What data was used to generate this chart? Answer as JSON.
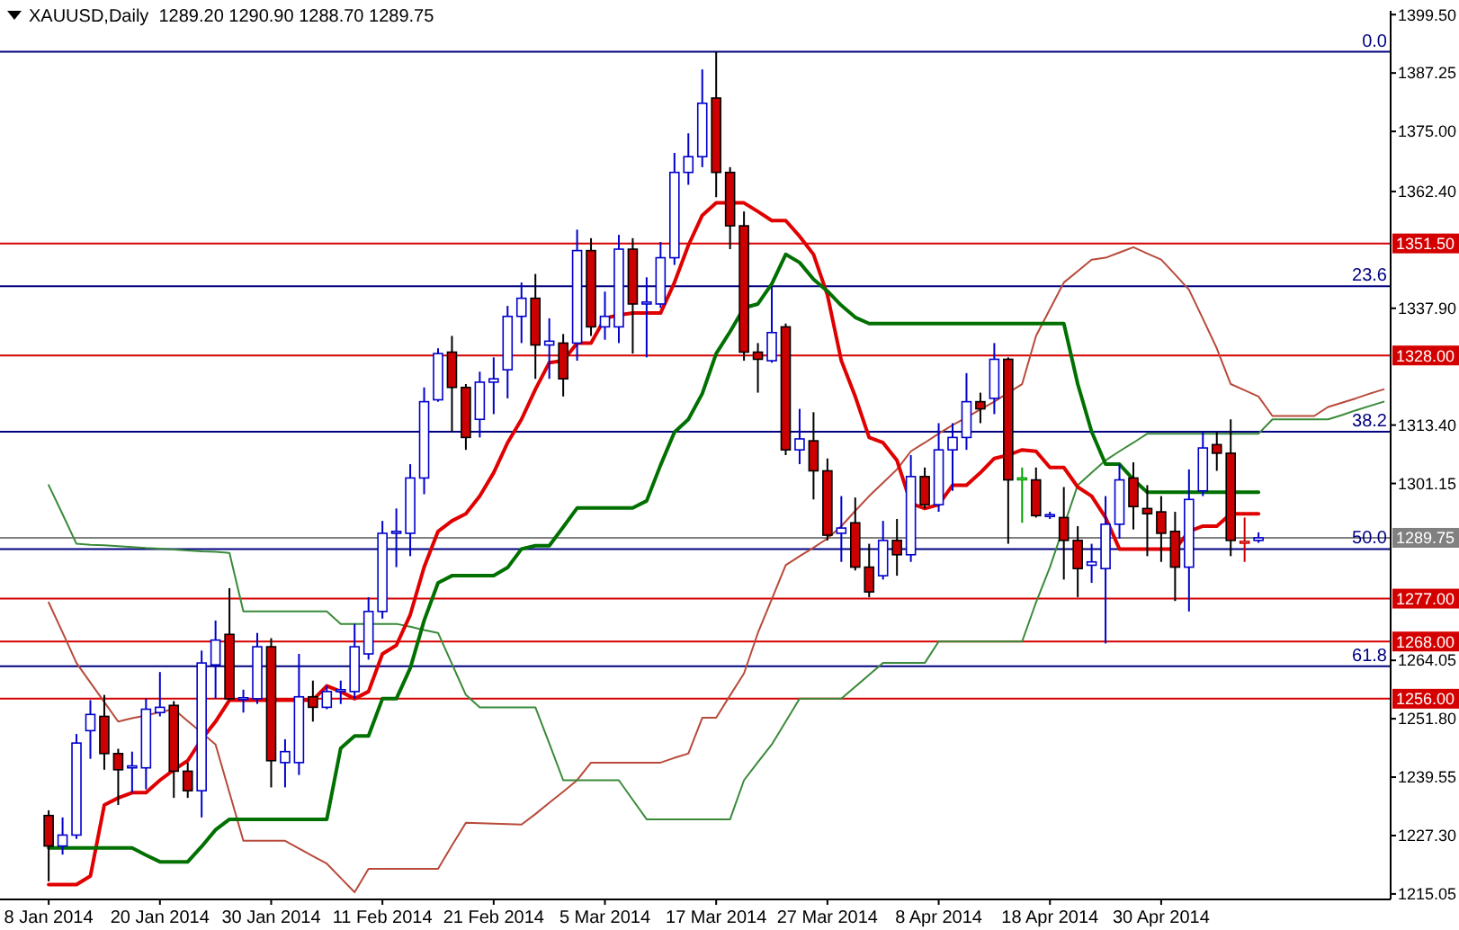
{
  "chart_data": {
    "type": "candlestick",
    "title": "XAUUSD,Daily  1289.20 1290.90 1288.70 1289.75",
    "categories": [
      "8 Jan 2014",
      null,
      null,
      null,
      null,
      null,
      null,
      null,
      "20 Jan 2014",
      null,
      null,
      null,
      null,
      null,
      null,
      null,
      "30 Jan 2014",
      null,
      null,
      null,
      null,
      null,
      null,
      null,
      "11 Feb 2014",
      null,
      null,
      null,
      null,
      null,
      null,
      null,
      "21 Feb 2014",
      null,
      null,
      null,
      null,
      null,
      null,
      null,
      "5 Mar 2014",
      null,
      null,
      null,
      null,
      null,
      null,
      null,
      "17 Mar 2014",
      null,
      null,
      null,
      null,
      null,
      null,
      null,
      "27 Mar 2014",
      null,
      null,
      null,
      null,
      null,
      null,
      null,
      "8 Apr 2014",
      null,
      null,
      null,
      null,
      null,
      null,
      null,
      "18 Apr 2014",
      null,
      null,
      null,
      null,
      null,
      null,
      null,
      "30 Apr 2014",
      null,
      null,
      null,
      null,
      null,
      null,
      null,
      null,
      null,
      null,
      null,
      null,
      null,
      null,
      null,
      null
    ],
    "ohlc": [
      [
        1231.5,
        1232.6,
        1217.7,
        1225.1
      ],
      [
        1225.1,
        1231.1,
        1223.3,
        1227.4
      ],
      [
        1227.4,
        1248.6,
        1226.6,
        1246.7
      ],
      [
        1249.3,
        1255.7,
        1243.4,
        1252.7
      ],
      [
        1252.3,
        1256.8,
        1241.1,
        1244.5
      ],
      [
        1244.5,
        1245.5,
        1233.7,
        1241.1
      ],
      [
        1241.5,
        1244.9,
        1236.3,
        1241.9
      ],
      [
        1241.5,
        1256.0,
        1237.0,
        1253.8
      ],
      [
        1253.1,
        1261.6,
        1252.3,
        1254.2
      ],
      [
        1254.6,
        1255.5,
        1235.2,
        1240.8
      ],
      [
        1240.8,
        1242.6,
        1235.2,
        1236.7
      ],
      [
        1236.7,
        1266.1,
        1231.1,
        1263.5
      ],
      [
        1263.1,
        1272.4,
        1256.0,
        1268.3
      ],
      [
        1269.5,
        1279.2,
        1255.7,
        1256.0
      ],
      [
        1256.0,
        1257.9,
        1253.1,
        1256.2
      ],
      [
        1256.0,
        1269.8,
        1254.9,
        1266.9
      ],
      [
        1266.9,
        1268.7,
        1237.4,
        1243.0
      ],
      [
        1242.6,
        1247.5,
        1237.4,
        1244.9
      ],
      [
        1242.6,
        1265.4,
        1240.0,
        1256.4
      ],
      [
        1256.4,
        1259.8,
        1251.2,
        1254.2
      ],
      [
        1254.2,
        1258.7,
        1253.8,
        1257.5
      ],
      [
        1257.5,
        1259.8,
        1254.9,
        1257.9
      ],
      [
        1257.5,
        1271.7,
        1256.0,
        1266.9
      ],
      [
        1265.4,
        1277.3,
        1264.2,
        1274.3
      ],
      [
        1274.3,
        1293.3,
        1272.8,
        1290.7
      ],
      [
        1290.7,
        1295.9,
        1283.6,
        1291.1
      ],
      [
        1290.7,
        1305.2,
        1285.9,
        1302.3
      ],
      [
        1302.3,
        1321.3,
        1298.9,
        1318.3
      ],
      [
        1318.7,
        1329.5,
        1318.3,
        1328.4
      ],
      [
        1328.7,
        1332.1,
        1312.0,
        1321.3
      ],
      [
        1321.3,
        1322.0,
        1308.2,
        1310.8
      ],
      [
        1314.6,
        1324.6,
        1310.8,
        1322.4
      ],
      [
        1322.4,
        1327.6,
        1315.7,
        1323.1
      ],
      [
        1325.0,
        1338.4,
        1319.0,
        1336.2
      ],
      [
        1336.2,
        1343.3,
        1330.6,
        1340.0
      ],
      [
        1340.0,
        1345.1,
        1323.1,
        1330.2
      ],
      [
        1330.2,
        1335.8,
        1323.1,
        1331.0
      ],
      [
        1330.6,
        1332.5,
        1319.4,
        1323.1
      ],
      [
        1330.6,
        1354.4,
        1326.9,
        1350.0
      ],
      [
        1350.0,
        1352.6,
        1332.1,
        1334.0
      ],
      [
        1334.0,
        1341.4,
        1331.3,
        1336.2
      ],
      [
        1334.0,
        1353.3,
        1330.6,
        1350.3
      ],
      [
        1350.3,
        1352.6,
        1328.4,
        1338.8
      ],
      [
        1338.8,
        1344.4,
        1327.6,
        1339.2
      ],
      [
        1338.8,
        1351.8,
        1338.0,
        1348.5
      ],
      [
        1348.5,
        1370.5,
        1347.0,
        1366.4
      ],
      [
        1366.4,
        1374.6,
        1363.8,
        1369.7
      ],
      [
        1369.7,
        1388.0,
        1367.5,
        1380.9
      ],
      [
        1382.0,
        1391.7,
        1361.2,
        1366.4
      ],
      [
        1366.4,
        1367.5,
        1350.3,
        1355.2
      ],
      [
        1355.2,
        1358.2,
        1326.9,
        1328.7
      ],
      [
        1328.7,
        1330.6,
        1320.2,
        1327.2
      ],
      [
        1326.9,
        1342.5,
        1326.5,
        1332.8
      ],
      [
        1334.0,
        1334.7,
        1307.1,
        1308.2
      ],
      [
        1308.2,
        1316.8,
        1305.2,
        1310.5
      ],
      [
        1310.1,
        1316.1,
        1297.8,
        1303.8
      ],
      [
        1303.8,
        1306.4,
        1289.2,
        1290.3
      ],
      [
        1290.7,
        1298.5,
        1284.7,
        1291.8
      ],
      [
        1292.9,
        1298.2,
        1282.9,
        1283.6
      ],
      [
        1283.6,
        1288.5,
        1277.3,
        1278.4
      ],
      [
        1281.8,
        1293.3,
        1281.0,
        1289.2
      ],
      [
        1289.2,
        1293.7,
        1281.8,
        1286.2
      ],
      [
        1286.2,
        1307.1,
        1284.7,
        1302.6
      ],
      [
        1302.6,
        1304.5,
        1295.9,
        1296.7
      ],
      [
        1296.7,
        1313.8,
        1295.2,
        1308.2
      ],
      [
        1308.2,
        1313.8,
        1299.6,
        1310.8
      ],
      [
        1310.8,
        1324.3,
        1308.2,
        1318.3
      ],
      [
        1318.3,
        1320.2,
        1313.8,
        1316.8
      ],
      [
        1319.0,
        1330.6,
        1315.7,
        1327.2
      ],
      [
        1327.2,
        1327.6,
        1288.5,
        1301.9
      ],
      [
        1302.0,
        1304.5,
        1292.9,
        1302.3
      ],
      [
        1301.9,
        1304.5,
        1294.0,
        1294.4
      ],
      [
        1294.4,
        1295.2,
        1293.7,
        1294.6
      ],
      [
        1294.0,
        1300.4,
        1281.0,
        1289.2
      ],
      [
        1289.2,
        1292.2,
        1277.3,
        1283.3
      ],
      [
        1284.0,
        1288.5,
        1280.3,
        1284.7
      ],
      [
        1283.3,
        1298.5,
        1267.6,
        1292.6
      ],
      [
        1292.6,
        1305.2,
        1289.6,
        1301.9
      ],
      [
        1302.3,
        1305.6,
        1291.5,
        1296.3
      ],
      [
        1295.9,
        1300.8,
        1285.9,
        1294.8
      ],
      [
        1295.2,
        1298.5,
        1284.7,
        1290.7
      ],
      [
        1291.1,
        1295.2,
        1276.5,
        1283.6
      ],
      [
        1283.6,
        1304.1,
        1274.3,
        1297.8
      ],
      [
        1299.6,
        1311.9,
        1298.5,
        1308.6
      ],
      [
        1309.3,
        1311.9,
        1303.8,
        1307.5
      ],
      [
        1307.5,
        1314.6,
        1285.9,
        1289.2
      ],
      [
        1288.8,
        1294.0,
        1284.7,
        1289.0
      ],
      [
        1289.2,
        1290.9,
        1288.7,
        1289.75
      ],
      null,
      null,
      null,
      null,
      null,
      null,
      null,
      null,
      null
    ],
    "colors": [
      "#cc0000",
      "#0000cd",
      "#0000cd",
      "#0000cd",
      "#cc0000",
      "#cc0000",
      "#0000cd",
      "#0000cd",
      "#0000cd",
      "#cc0000",
      "#cc0000",
      "#0000cd",
      "#0000cd",
      "#cc0000",
      "#0000cd",
      "#0000cd",
      "#cc0000",
      "#0000cd",
      "#0000cd",
      "#cc0000",
      "#0000cd",
      "#0000cd",
      "#0000cd",
      "#0000cd",
      "#0000cd",
      "#0000cd",
      "#0000cd",
      "#0000cd",
      "#0000cd",
      "#cc0000",
      "#cc0000",
      "#0000cd",
      "#0000cd",
      "#0000cd",
      "#0000cd",
      "#cc0000",
      "#0000cd",
      "#cc0000",
      "#0000cd",
      "#cc0000",
      "#0000cd",
      "#0000cd",
      "#cc0000",
      "#0000cd",
      "#0000cd",
      "#0000cd",
      "#0000cd",
      "#0000cd",
      "#cc0000",
      "#cc0000",
      "#cc0000",
      "#cc0000",
      "#0000cd",
      "#cc0000",
      "#0000cd",
      "#cc0000",
      "#cc0000",
      "#0000cd",
      "#cc0000",
      "#cc0000",
      "#0000cd",
      "#cc0000",
      "#0000cd",
      "#cc0000",
      "#0000cd",
      "#0000cd",
      "#0000cd",
      "#cc0000",
      "#0000cd",
      "#cc0000",
      "#00a000",
      "#cc0000",
      "#0000cd",
      "#cc0000",
      "#cc0000",
      "#0000cd",
      "#0000cd",
      "#0000cd",
      "#cc0000",
      "#cc0000",
      "#cc0000",
      "#cc0000",
      "#0000cd",
      "#0000cd",
      "#cc0000",
      "#cc0000",
      "#cc0000",
      "#0000cd",
      null,
      null,
      null,
      null,
      null,
      null,
      null,
      null,
      null
    ],
    "series": [
      {
        "type": "line",
        "color": "#b84a3a",
        "values": [
          1276.2,
          1269.9,
          1263.5,
          1259.4,
          1255.3,
          1251.2,
          1251.9,
          1252.5,
          1253.2,
          1253.8,
          1251.3,
          1248.9,
          1246.4,
          1236.3,
          1226.2,
          1226.2,
          1226.2,
          1226.2,
          1224.6,
          1223,
          1221.4,
          1218.4,
          1215.4,
          1220.3,
          1220.3,
          1220.3,
          1220.3,
          1220.3,
          1220.3,
          1225.2,
          1230,
          1229.9,
          1229.8,
          1229.7,
          1229.6,
          1231.8,
          1234.2,
          1236.5,
          1238.9,
          1242.6,
          1242.6,
          1242.6,
          1242.6,
          1242.6,
          1242.6,
          1243.6,
          1244.5,
          1252,
          1252,
          1256.7,
          1261.3,
          1269.8,
          1276.9,
          1284,
          1285.9,
          1287.7,
          1289.6,
          1292.2,
          1295.4,
          1298.5,
          1301.3,
          1304.1,
          1307.9,
          1309.7,
          1311.6,
          1313.4,
          1315,
          1316.7,
          1318.3,
          1320.2,
          1322,
          1332.1,
          1337.7,
          1343.3,
          1345.7,
          1348.1,
          1348.5,
          1349.6,
          1350.7,
          1349.4,
          1348.1,
          1345,
          1341.8,
          1335.7,
          1329.5,
          1322,
          1320.7,
          1319.4,
          1315.3,
          1315.3,
          1315.3,
          1315.3,
          1317.2,
          1318.1,
          1319,
          1320,
          1320.9
        ]
      },
      {
        "type": "line",
        "color": "#3a8a3a",
        "values": [
          1300.8,
          1294.7,
          1288.5,
          1288.3,
          1288.2,
          1288,
          1287.8,
          1287.6,
          1287.5,
          1287.3,
          1287.1,
          1286.9,
          1286.8,
          1286.6,
          1274.3,
          1274.3,
          1274.3,
          1274.3,
          1274.3,
          1274.3,
          1274.3,
          1271.7,
          1271.7,
          1271.7,
          1271.7,
          1271.7,
          1271.1,
          1270.4,
          1269.8,
          1263.3,
          1256.8,
          1254.2,
          1254.2,
          1254.2,
          1254.2,
          1254.2,
          1246.6,
          1238.9,
          1238.9,
          1238.9,
          1238.9,
          1238.9,
          1234.8,
          1230.7,
          1230.7,
          1230.7,
          1230.7,
          1230.7,
          1230.7,
          1230.7,
          1238.9,
          1242.7,
          1246.4,
          1251.2,
          1256,
          1256,
          1256,
          1256,
          1258.5,
          1261,
          1263.5,
          1263.5,
          1263.5,
          1263.5,
          1268,
          1268,
          1268,
          1268,
          1268,
          1268,
          1268,
          1276.2,
          1283.6,
          1292.2,
          1300.8,
          1303.4,
          1306,
          1307.9,
          1309.7,
          1311.6,
          1311.6,
          1311.6,
          1311.6,
          1311.6,
          1311.6,
          1311.6,
          1311.6,
          1311.6,
          1314.6,
          1314.6,
          1314.6,
          1314.6,
          1314.6,
          1315.5,
          1316.5,
          1317.4,
          1318.3
        ]
      },
      {
        "type": "line",
        "color": "#e00000",
        "values": [
          1217,
          1217,
          1217,
          1218.8,
          1233.7,
          1235.2,
          1236.3,
          1236.3,
          1238.9,
          1241.1,
          1243,
          1247.5,
          1251.2,
          1255.7,
          1255.7,
          1255.7,
          1255.7,
          1255.7,
          1255.7,
          1255.7,
          1258.7,
          1257.5,
          1256,
          1257.5,
          1265.4,
          1267.2,
          1273.6,
          1283.6,
          1291.1,
          1293.3,
          1294.8,
          1298.5,
          1303.4,
          1309.7,
          1314.6,
          1320.9,
          1326.5,
          1326.9,
          1330.6,
          1330.6,
          1335.8,
          1336.5,
          1336.9,
          1336.9,
          1336.9,
          1343.3,
          1351.1,
          1357.4,
          1360,
          1360,
          1360,
          1358.2,
          1356.3,
          1356.3,
          1353,
          1349.2,
          1340.7,
          1326.9,
          1319.4,
          1310.8,
          1309.7,
          1306,
          1297,
          1295.9,
          1296.7,
          1300.8,
          1300.8,
          1303.4,
          1306.4,
          1307.1,
          1308.2,
          1307.9,
          1304.5,
          1304.5,
          1300.4,
          1298.5,
          1294,
          1287.4,
          1287.4,
          1287.4,
          1287.4,
          1287.4,
          1291.1,
          1292.2,
          1292.2,
          1294.8,
          1294.8,
          1294.8,
          null,
          null,
          null,
          null,
          null,
          null,
          null,
          null,
          null
        ]
      },
      {
        "type": "line",
        "color": "#007000",
        "values": [
          1224.7,
          1224.7,
          1224.7,
          1224.7,
          1224.7,
          1224.7,
          1224.7,
          1223.2,
          1221.8,
          1221.8,
          1221.8,
          1225,
          1228.5,
          1230.7,
          1230.7,
          1230.7,
          1230.7,
          1230.7,
          1230.7,
          1230.7,
          1230.7,
          1245.6,
          1248.2,
          1248.2,
          1256,
          1256,
          1262.4,
          1272.4,
          1280.3,
          1281.8,
          1281.8,
          1281.8,
          1281.8,
          1283.5,
          1287.4,
          1288.1,
          1288.1,
          1292,
          1296,
          1296,
          1296,
          1296,
          1296,
          1297.5,
          1305,
          1311.9,
          1314.6,
          1320,
          1328.4,
          1333,
          1338,
          1338.8,
          1343,
          1349.2,
          1347.5,
          1344,
          1341.5,
          1338.5,
          1336,
          1334.7,
          1334.7,
          1334.7,
          1334.7,
          1334.7,
          1334.7,
          1334.7,
          1334.7,
          1334.7,
          1334.7,
          1334.7,
          1334.7,
          1334.7,
          1334.7,
          1334.7,
          1322,
          1312,
          1305.2,
          1305.2,
          1302,
          1299.3,
          1299.3,
          1299.3,
          1299.3,
          1299.3,
          1299.3,
          1299.3,
          1299.3,
          1299.3,
          null,
          null,
          null,
          null,
          null,
          null,
          null,
          null,
          null
        ]
      }
    ],
    "ylim": [
      1213.9,
      1400.3
    ],
    "yticks": [
      {
        "value": 1215.05,
        "label": "1215.05"
      },
      {
        "value": 1227.3,
        "label": "1227.30"
      },
      {
        "value": 1239.55,
        "label": "1239.55"
      },
      {
        "value": 1251.8,
        "label": "1251.80"
      },
      {
        "value": 1264.05,
        "label": "1264.05"
      },
      {
        "value": 1301.15,
        "label": "1301.15"
      },
      {
        "value": 1313.4,
        "label": "1313.40"
      },
      {
        "value": 1337.9,
        "label": "1337.90"
      },
      {
        "value": 1362.4,
        "label": "1362.40"
      },
      {
        "value": 1375,
        "label": "1375.00"
      },
      {
        "value": 1387.25,
        "label": "1387.25"
      },
      {
        "value": 1399.5,
        "label": "1399.50"
      }
    ],
    "ref_lines": [
      {
        "axis": "y",
        "value": 1391.7,
        "color": "#000080"
      },
      {
        "axis": "y",
        "value": 1342.5,
        "color": "#000080"
      },
      {
        "axis": "y",
        "value": 1312.0,
        "color": "#000080"
      },
      {
        "axis": "y",
        "value": 1287.4,
        "color": "#000080"
      },
      {
        "axis": "y",
        "value": 1262.8,
        "color": "#000080"
      },
      {
        "axis": "y",
        "value": 1351.5,
        "label": "1351.50",
        "color": "#d40000"
      },
      {
        "axis": "y",
        "value": 1328.0,
        "label": "1328.00",
        "color": "#d40000"
      },
      {
        "axis": "y",
        "value": 1277.0,
        "label": "1277.00",
        "color": "#d40000"
      },
      {
        "axis": "y",
        "value": 1268.0,
        "label": "1268.00",
        "color": "#d40000"
      },
      {
        "axis": "y",
        "value": 1256.0,
        "label": "1256.00",
        "color": "#d40000"
      },
      {
        "axis": "y",
        "value": 1289.75,
        "label": "1289.75",
        "color": "#808080"
      }
    ],
    "annotations": [
      {
        "text": "0.0",
        "y": 1391.7
      },
      {
        "text": "23.6",
        "y": 1342.5
      },
      {
        "text": "38.2",
        "y": 1312.0
      },
      {
        "text": "50.0",
        "y": 1287.4
      },
      {
        "text": "61.8",
        "y": 1262.8
      }
    ]
  }
}
